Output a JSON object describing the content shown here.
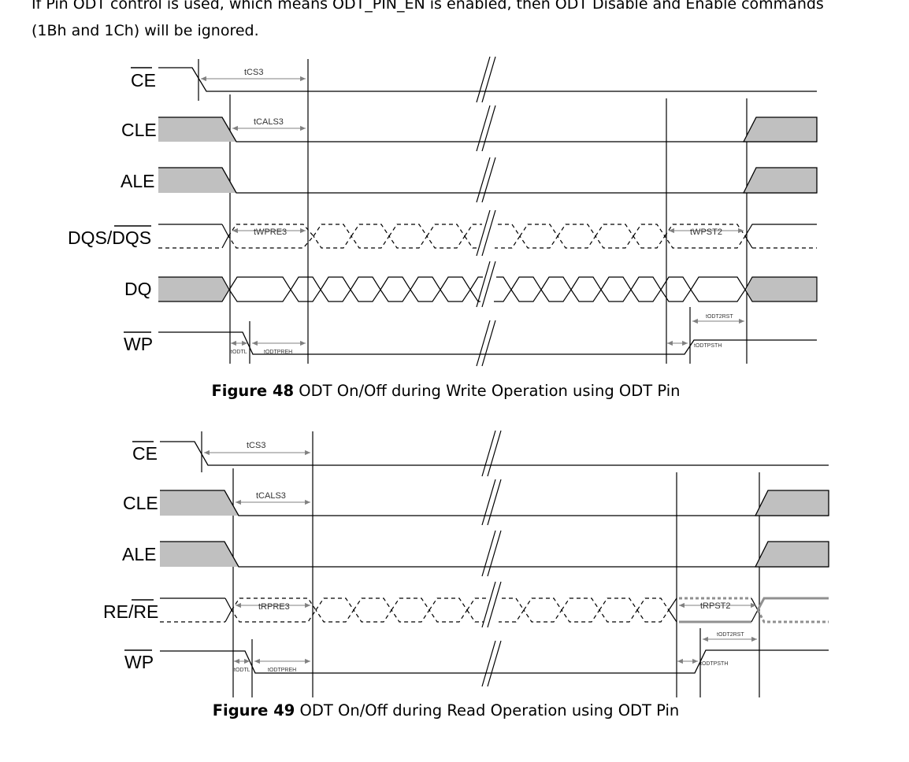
{
  "intro": {
    "line1": "If Pin ODT control is used, which means ODT_PIN_EN is enabled, then ODT Disable and Enable commands",
    "line2": "(1Bh and 1Ch) will be ignored."
  },
  "colors": {
    "shade": "#c0c0c0",
    "line": "#000000",
    "arrow": "#808080"
  },
  "figure48": {
    "caption_label": "Figure 48",
    "caption_text": " ODT On/Off during Write Operation using ODT Pin",
    "signals": {
      "ce": "CE",
      "cle": "CLE",
      "ale": "ALE",
      "dqs": "DQS/DQS",
      "dq": "DQ",
      "wp": "WP"
    },
    "timings": {
      "tcs3": "tCS3",
      "tcals3": "tCALS3",
      "twpre3": "tWPRE3",
      "twpst2": "tWPST2",
      "todt2rst": "tODT2RST",
      "todtl": "tODTL",
      "todtpreh": "tODTPREH",
      "todtpsth": "tODTPSTH"
    }
  },
  "figure49": {
    "caption_label": "Figure 49",
    "caption_text": " ODT On/Off during Read Operation using ODT Pin",
    "signals": {
      "ce": "CE",
      "cle": "CLE",
      "ale": "ALE",
      "re": "RE/RE",
      "wp": "WP"
    },
    "timings": {
      "tcs3": "tCS3",
      "tcals3": "tCALS3",
      "trpre3": "tRPRE3",
      "trpst2": "tRPST2",
      "todt2rst": "tODT2RST",
      "todtl": "tODTL",
      "todtpreh": "tODTPREH",
      "todtpsth": "tODTPSTH"
    }
  }
}
